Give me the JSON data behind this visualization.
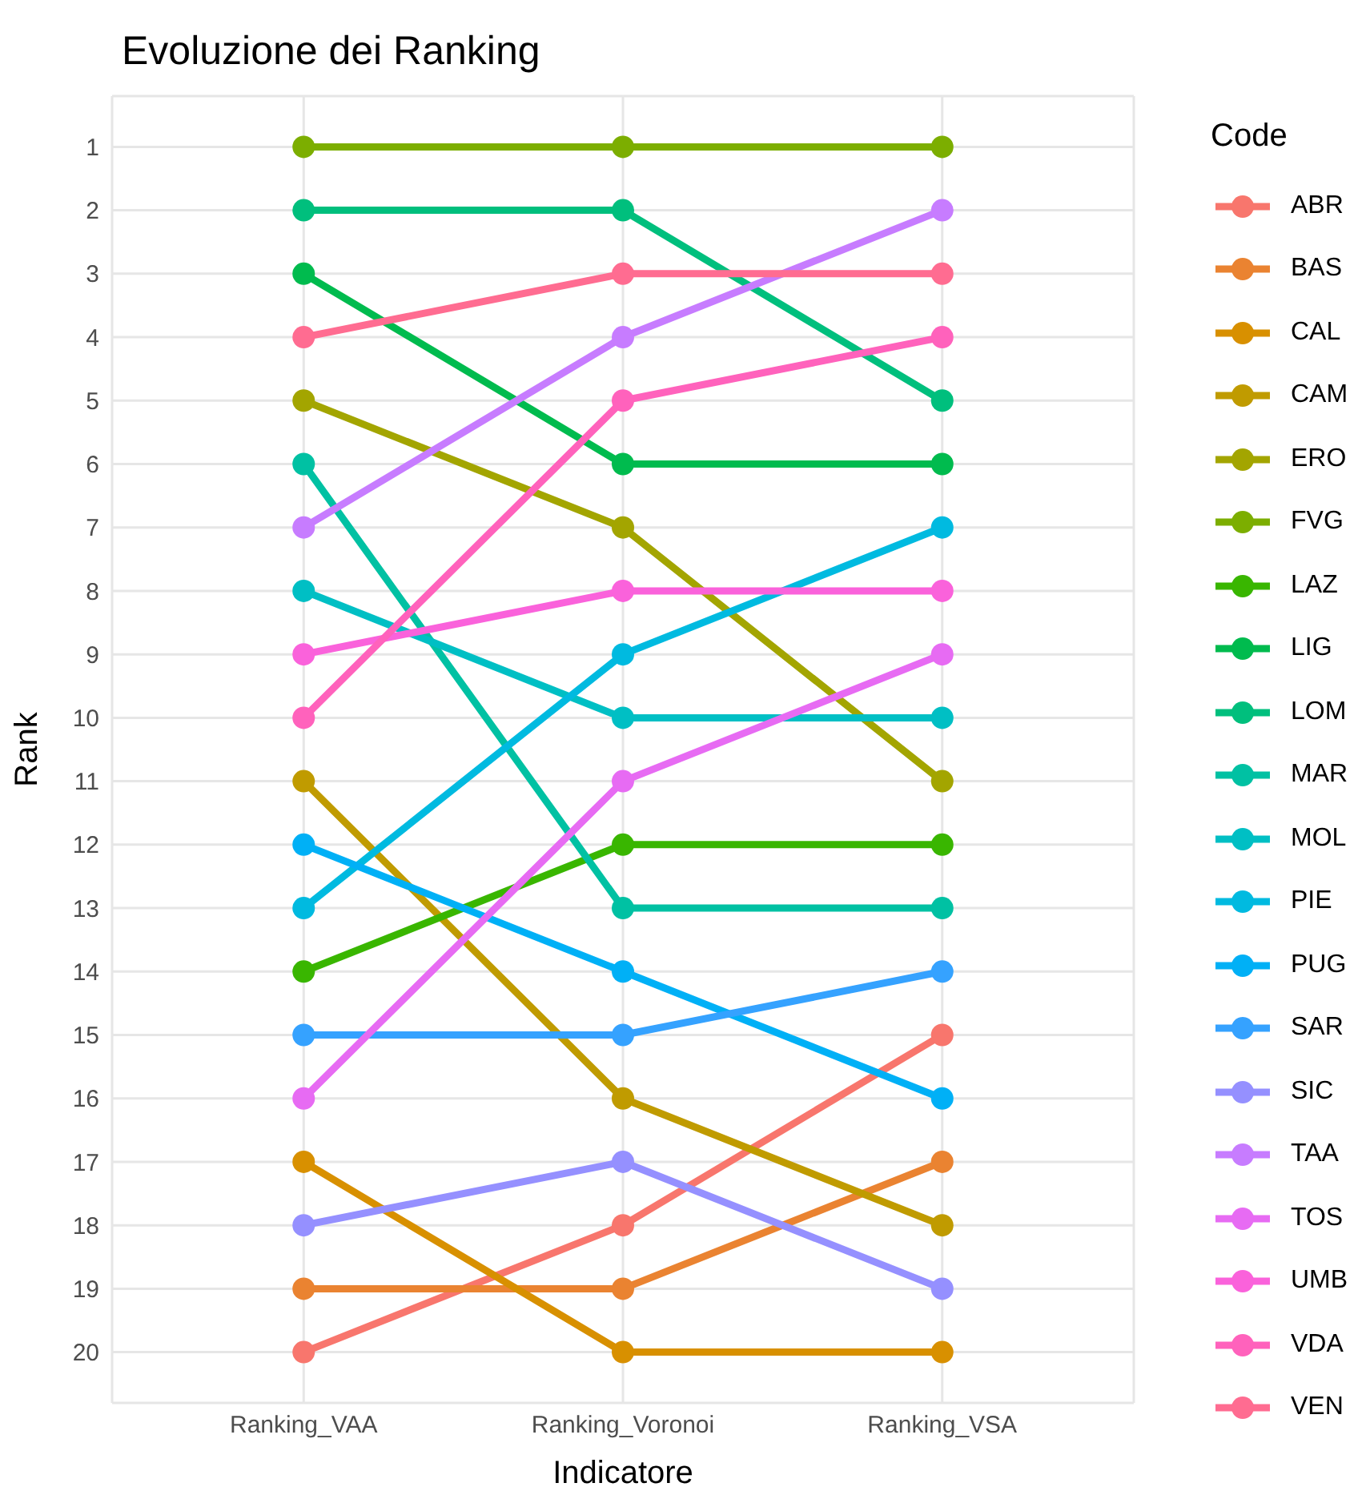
{
  "chart_data": {
    "type": "line",
    "title": "Evoluzione dei Ranking",
    "xlabel": "Indicatore",
    "ylabel": "Rank",
    "legend_title": "Code",
    "legend": "right",
    "grid": true,
    "marker": "circle",
    "line_style": "solid",
    "categories": [
      "Ranking_VAA",
      "Ranking_Voronoi",
      "Ranking_VSA"
    ],
    "ylim": [
      20.8,
      0.2
    ],
    "yticks": [
      1,
      2,
      3,
      4,
      5,
      6,
      7,
      8,
      9,
      10,
      11,
      12,
      13,
      14,
      15,
      16,
      17,
      18,
      19,
      20
    ],
    "series": [
      {
        "name": "ABR",
        "color": "#F8766D",
        "values": [
          20,
          18,
          15
        ]
      },
      {
        "name": "BAS",
        "color": "#EA8331",
        "values": [
          19,
          19,
          17
        ]
      },
      {
        "name": "CAL",
        "color": "#D89000",
        "values": [
          17,
          20,
          20
        ]
      },
      {
        "name": "CAM",
        "color": "#C09B00",
        "values": [
          11,
          16,
          18
        ]
      },
      {
        "name": "ERO",
        "color": "#A3A500",
        "values": [
          5,
          7,
          11
        ]
      },
      {
        "name": "FVG",
        "color": "#7CAE00",
        "values": [
          1,
          1,
          1
        ]
      },
      {
        "name": "LAZ",
        "color": "#39B600",
        "values": [
          14,
          12,
          12
        ]
      },
      {
        "name": "LIG",
        "color": "#00BB4E",
        "values": [
          3,
          6,
          6
        ]
      },
      {
        "name": "LOM",
        "color": "#00BF7D",
        "values": [
          2,
          2,
          5
        ]
      },
      {
        "name": "MAR",
        "color": "#00C1A3",
        "values": [
          6,
          13,
          13
        ]
      },
      {
        "name": "MOL",
        "color": "#00BFC4",
        "values": [
          8,
          10,
          10
        ]
      },
      {
        "name": "PIE",
        "color": "#00BAE0",
        "values": [
          13,
          9,
          7
        ]
      },
      {
        "name": "PUG",
        "color": "#00B0F6",
        "values": [
          12,
          14,
          16
        ]
      },
      {
        "name": "SAR",
        "color": "#35A2FF",
        "values": [
          15,
          15,
          14
        ]
      },
      {
        "name": "SIC",
        "color": "#9590FF",
        "values": [
          18,
          17,
          19
        ]
      },
      {
        "name": "TAA",
        "color": "#C77CFF",
        "values": [
          7,
          4,
          2
        ]
      },
      {
        "name": "TOS",
        "color": "#E76BF3",
        "values": [
          16,
          11,
          9
        ]
      },
      {
        "name": "UMB",
        "color": "#FA62DB",
        "values": [
          9,
          8,
          8
        ]
      },
      {
        "name": "VDA",
        "color": "#FF62BC",
        "values": [
          10,
          5,
          4
        ]
      },
      {
        "name": "VEN",
        "color": "#FF6C91",
        "values": [
          4,
          3,
          3
        ]
      }
    ]
  }
}
